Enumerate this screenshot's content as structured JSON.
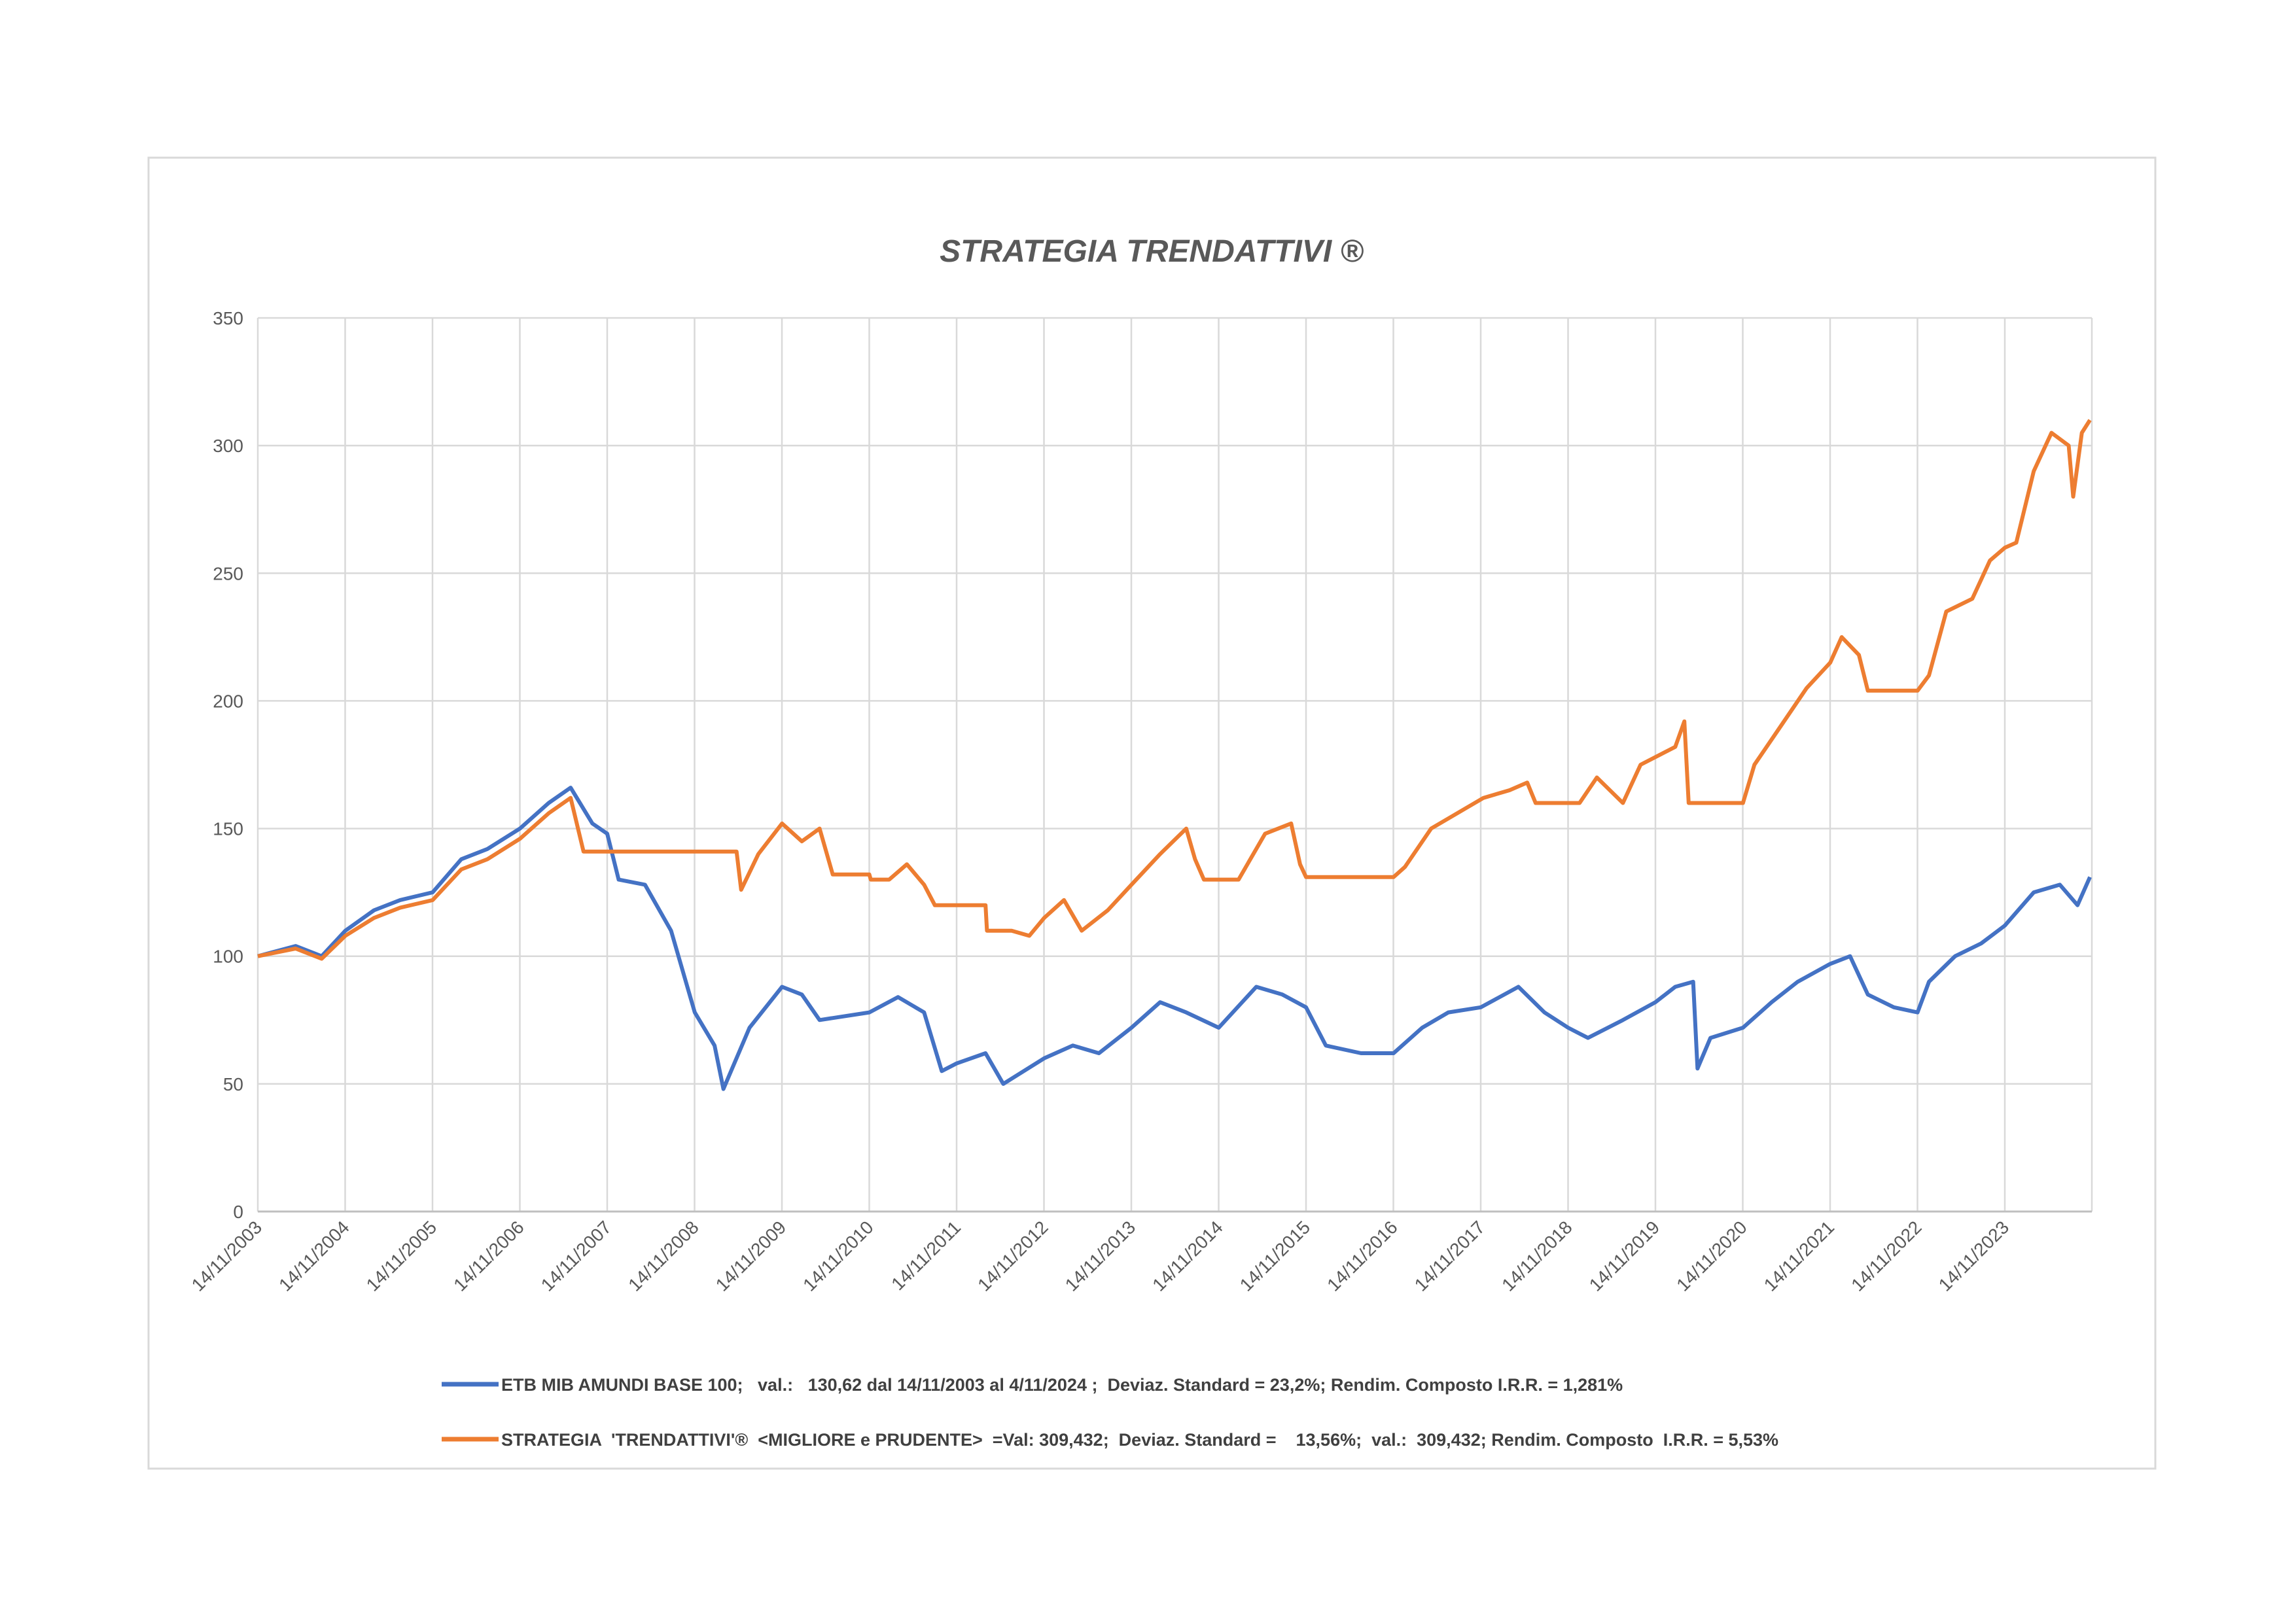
{
  "chart_data": {
    "type": "line",
    "title": "STRATEGIA TRENDATTIVI ®",
    "xlabel": "",
    "ylabel": "",
    "ylim": [
      0,
      350
    ],
    "yticks": [
      0,
      50,
      100,
      150,
      200,
      250,
      300,
      350
    ],
    "xlim": [
      "2003-11-14",
      "2024-11-04"
    ],
    "xticks": [
      "14/11/2003",
      "14/11/2004",
      "14/11/2005",
      "14/11/2006",
      "14/11/2007",
      "14/11/2008",
      "14/11/2009",
      "14/11/2010",
      "14/11/2011",
      "14/11/2012",
      "14/11/2013",
      "14/11/2014",
      "14/11/2015",
      "14/11/2016",
      "14/11/2017",
      "14/11/2018",
      "14/11/2019",
      "14/11/2020",
      "14/11/2021",
      "14/11/2022",
      "14/11/2023"
    ],
    "grid": true,
    "legend_position": "bottom",
    "series": [
      {
        "name": "ETB MIB AMUNDI BASE 100;   val.:   130,62 dal 14/11/2003 al 4/11/2024 ;  Deviaz. Standard = 23,2%; Rendim. Composto I.R.R. = 1,281%",
        "color": "#4472C4",
        "points": [
          [
            "2003-11-14",
            100
          ],
          [
            "2004-04-20",
            104
          ],
          [
            "2004-08-07",
            100
          ],
          [
            "2004-11-14",
            110
          ],
          [
            "2005-03-14",
            118
          ],
          [
            "2005-07-01",
            122
          ],
          [
            "2005-11-14",
            125
          ],
          [
            "2006-03-14",
            138
          ],
          [
            "2006-07-01",
            142
          ],
          [
            "2006-11-14",
            150
          ],
          [
            "2007-03-14",
            160
          ],
          [
            "2007-06-14",
            166
          ],
          [
            "2007-09-13",
            152
          ],
          [
            "2007-11-14",
            148
          ],
          [
            "2008-01-01",
            130
          ],
          [
            "2008-04-20",
            128
          ],
          [
            "2008-08-07",
            110
          ],
          [
            "2008-11-14",
            78
          ],
          [
            "2009-02-05",
            65
          ],
          [
            "2009-03-14",
            48
          ],
          [
            "2009-07-01",
            72
          ],
          [
            "2009-11-14",
            88
          ],
          [
            "2010-02-05",
            85
          ],
          [
            "2010-04-20",
            75
          ],
          [
            "2010-11-14",
            78
          ],
          [
            "2011-03-14",
            84
          ],
          [
            "2011-07-01",
            78
          ],
          [
            "2011-09-13",
            55
          ],
          [
            "2011-11-14",
            58
          ],
          [
            "2012-03-14",
            62
          ],
          [
            "2012-05-27",
            50
          ],
          [
            "2012-11-14",
            60
          ],
          [
            "2013-03-14",
            65
          ],
          [
            "2013-07-01",
            62
          ],
          [
            "2013-11-14",
            72
          ],
          [
            "2014-03-14",
            82
          ],
          [
            "2014-07-01",
            78
          ],
          [
            "2014-11-14",
            72
          ],
          [
            "2015-04-20",
            88
          ],
          [
            "2015-08-07",
            85
          ],
          [
            "2015-11-14",
            80
          ],
          [
            "2016-02-05",
            65
          ],
          [
            "2016-07-01",
            62
          ],
          [
            "2016-11-14",
            62
          ],
          [
            "2017-03-14",
            72
          ],
          [
            "2017-07-01",
            78
          ],
          [
            "2017-11-14",
            80
          ],
          [
            "2018-04-20",
            88
          ],
          [
            "2018-08-07",
            78
          ],
          [
            "2018-11-14",
            72
          ],
          [
            "2019-02-05",
            68
          ],
          [
            "2019-07-01",
            75
          ],
          [
            "2019-11-14",
            82
          ],
          [
            "2020-02-05",
            88
          ],
          [
            "2020-04-20",
            90
          ],
          [
            "2020-05-08",
            56
          ],
          [
            "2020-07-01",
            68
          ],
          [
            "2020-11-14",
            72
          ],
          [
            "2021-03-14",
            82
          ],
          [
            "2021-07-01",
            90
          ],
          [
            "2021-11-14",
            97
          ],
          [
            "2022-02-05",
            100
          ],
          [
            "2022-04-20",
            85
          ],
          [
            "2022-08-07",
            80
          ],
          [
            "2022-11-14",
            78
          ],
          [
            "2023-01-01",
            90
          ],
          [
            "2023-04-20",
            100
          ],
          [
            "2023-08-07",
            105
          ],
          [
            "2023-11-14",
            112
          ],
          [
            "2024-03-14",
            125
          ],
          [
            "2024-07-01",
            128
          ],
          [
            "2024-09-13",
            120
          ],
          [
            "2024-11-04",
            131
          ]
        ]
      },
      {
        "name": "STRATEGIA  'TRENDATTIVI'®  <MIGLIORE e PRUDENTE>  =Val: 309,432;  Deviaz. Standard =    13,56%;  val.:  309,432; Rendim. Composto  I.R.R. = 5,53%",
        "color": "#ED7D31",
        "points": [
          [
            "2003-11-14",
            100
          ],
          [
            "2004-04-20",
            103
          ],
          [
            "2004-08-07",
            99
          ],
          [
            "2004-11-14",
            108
          ],
          [
            "2005-03-14",
            115
          ],
          [
            "2005-07-01",
            119
          ],
          [
            "2005-11-14",
            122
          ],
          [
            "2006-03-14",
            134
          ],
          [
            "2006-07-01",
            138
          ],
          [
            "2006-11-14",
            146
          ],
          [
            "2007-03-14",
            156
          ],
          [
            "2007-06-14",
            162
          ],
          [
            "2007-08-07",
            141
          ],
          [
            "2009-05-08",
            141
          ],
          [
            "2009-05-27",
            126
          ],
          [
            "2009-08-07",
            140
          ],
          [
            "2009-11-14",
            152
          ],
          [
            "2010-02-05",
            145
          ],
          [
            "2010-04-20",
            150
          ],
          [
            "2010-06-14",
            132
          ],
          [
            "2010-11-14",
            132
          ],
          [
            "2010-11-20",
            130
          ],
          [
            "2011-02-05",
            130
          ],
          [
            "2011-04-20",
            136
          ],
          [
            "2011-07-01",
            128
          ],
          [
            "2011-08-15",
            120
          ],
          [
            "2012-03-14",
            120
          ],
          [
            "2012-03-20",
            110
          ],
          [
            "2012-07-01",
            110
          ],
          [
            "2012-09-13",
            108
          ],
          [
            "2012-11-14",
            115
          ],
          [
            "2013-02-05",
            122
          ],
          [
            "2013-04-20",
            110
          ],
          [
            "2013-08-07",
            118
          ],
          [
            "2013-11-14",
            128
          ],
          [
            "2014-03-14",
            140
          ],
          [
            "2014-07-01",
            150
          ],
          [
            "2014-08-07",
            138
          ],
          [
            "2014-09-13",
            130
          ],
          [
            "2015-02-05",
            130
          ],
          [
            "2015-05-27",
            148
          ],
          [
            "2015-09-13",
            152
          ],
          [
            "2015-10-20",
            136
          ],
          [
            "2015-11-14",
            131
          ],
          [
            "2016-11-14",
            131
          ],
          [
            "2017-01-01",
            135
          ],
          [
            "2017-04-20",
            150
          ],
          [
            "2017-09-13",
            158
          ],
          [
            "2017-11-25",
            162
          ],
          [
            "2018-03-14",
            165
          ],
          [
            "2018-05-27",
            168
          ],
          [
            "2018-07-01",
            160
          ],
          [
            "2019-01-01",
            160
          ],
          [
            "2019-03-14",
            170
          ],
          [
            "2019-07-01",
            160
          ],
          [
            "2019-09-13",
            175
          ],
          [
            "2020-02-05",
            182
          ],
          [
            "2020-03-14",
            192
          ],
          [
            "2020-04-01",
            160
          ],
          [
            "2020-11-14",
            160
          ],
          [
            "2021-01-01",
            175
          ],
          [
            "2021-04-20",
            190
          ],
          [
            "2021-08-07",
            205
          ],
          [
            "2021-11-14",
            215
          ],
          [
            "2022-01-01",
            225
          ],
          [
            "2022-03-14",
            218
          ],
          [
            "2022-04-20",
            204
          ],
          [
            "2022-11-14",
            204
          ],
          [
            "2023-01-01",
            210
          ],
          [
            "2023-03-14",
            235
          ],
          [
            "2023-07-01",
            240
          ],
          [
            "2023-09-13",
            255
          ],
          [
            "2023-11-14",
            260
          ],
          [
            "2024-01-01",
            262
          ],
          [
            "2024-03-14",
            290
          ],
          [
            "2024-05-27",
            305
          ],
          [
            "2024-08-07",
            300
          ],
          [
            "2024-08-26",
            280
          ],
          [
            "2024-10-01",
            305
          ],
          [
            "2024-11-04",
            310
          ]
        ]
      }
    ]
  }
}
